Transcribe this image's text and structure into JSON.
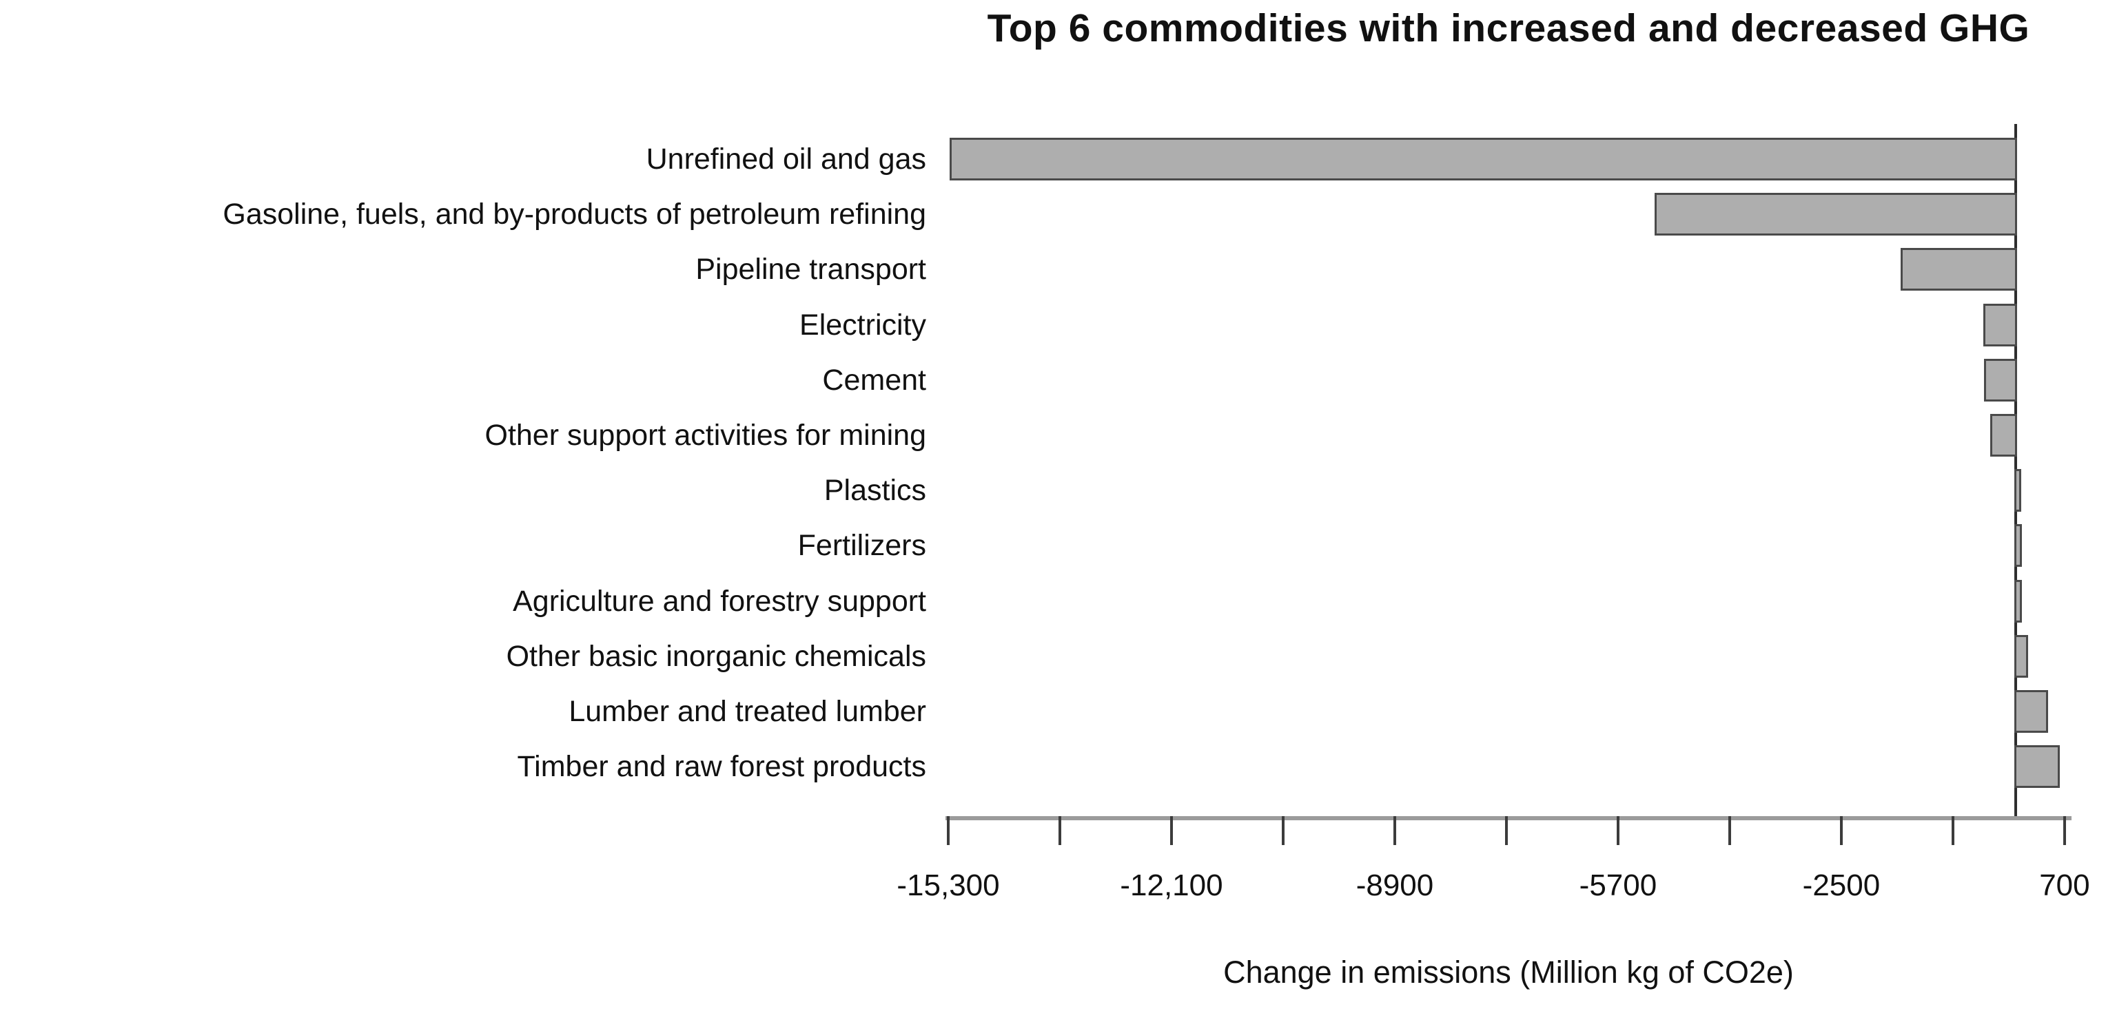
{
  "chart_data": {
    "type": "bar",
    "orientation": "horizontal",
    "title": "Top 6 commodities with increased and decreased GHG",
    "xlabel": "Change in emissions (Million kg of CO2e)",
    "ylabel": "",
    "grid": false,
    "legend": false,
    "xlim": [
      -15300,
      760
    ],
    "categories": [
      "Unrefined oil and gas",
      "Gasoline, fuels, and by-products of petroleum refining",
      "Pipeline transport",
      "Electricity",
      "Cement",
      "Other support activities for mining",
      "Plastics",
      "Fertilizers",
      "Agriculture and forestry support",
      "Other basic inorganic chemicals",
      "Lumber and treated lumber",
      "Timber and raw forest products"
    ],
    "values": [
      -15300,
      -5200,
      -1670,
      -480,
      -470,
      -390,
      100,
      110,
      110,
      200,
      480,
      650
    ],
    "ticks": [
      {
        "value": -15300,
        "label": "-15,300"
      },
      {
        "value": -13700,
        "label": ""
      },
      {
        "value": -12100,
        "label": "-12,100"
      },
      {
        "value": -10500,
        "label": ""
      },
      {
        "value": -8900,
        "label": "-8900"
      },
      {
        "value": -7300,
        "label": ""
      },
      {
        "value": -5700,
        "label": "-5700"
      },
      {
        "value": -4100,
        "label": ""
      },
      {
        "value": -2500,
        "label": "-2500"
      },
      {
        "value": -900,
        "label": ""
      },
      {
        "value": 700,
        "label": "700"
      }
    ],
    "colors": {
      "bar_fill": "#aeaeae",
      "bar_border": "#4a4a4a",
      "axis_line": "#9b9b9b",
      "tick_mark": "#3c3c3c",
      "zero_line": "#2e2e2e",
      "text": "#111111"
    }
  }
}
